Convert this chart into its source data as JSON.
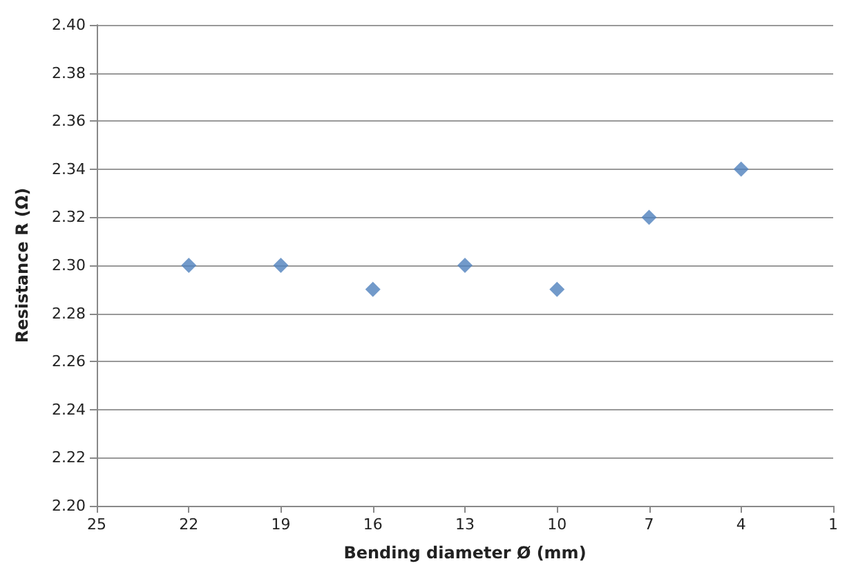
{
  "chart_data": {
    "type": "scatter",
    "xlabel": "Bending diameter Ø (mm)",
    "ylabel": "Resistance R (Ω)",
    "x": [
      22,
      19,
      16,
      13,
      10,
      7,
      4
    ],
    "series": [
      {
        "color": "#4f81bd",
        "values": [
          2.3,
          2.3,
          2.29,
          2.3,
          2.29,
          2.32,
          2.34
        ]
      }
    ],
    "xlim": [
      25,
      1
    ],
    "xticks": [
      25,
      22,
      19,
      16,
      13,
      10,
      7,
      4,
      1
    ],
    "ylim": [
      2.2,
      2.4
    ],
    "yticks": [
      {
        "value": 2.2,
        "label": "2.20"
      },
      {
        "value": 2.22,
        "label": "2.22"
      },
      {
        "value": 2.24,
        "label": "2.24"
      },
      {
        "value": 2.26,
        "label": "2.26"
      },
      {
        "value": 2.28,
        "label": "2.28"
      },
      {
        "value": 2.3,
        "label": "2.30"
      },
      {
        "value": 2.32,
        "label": "2.32"
      },
      {
        "value": 2.34,
        "label": "2.34"
      },
      {
        "value": 2.36,
        "label": "2.36"
      },
      {
        "value": 2.38,
        "label": "2.38"
      },
      {
        "value": 2.4,
        "label": "2.40"
      }
    ],
    "grid": "y",
    "marker": "diamond"
  }
}
